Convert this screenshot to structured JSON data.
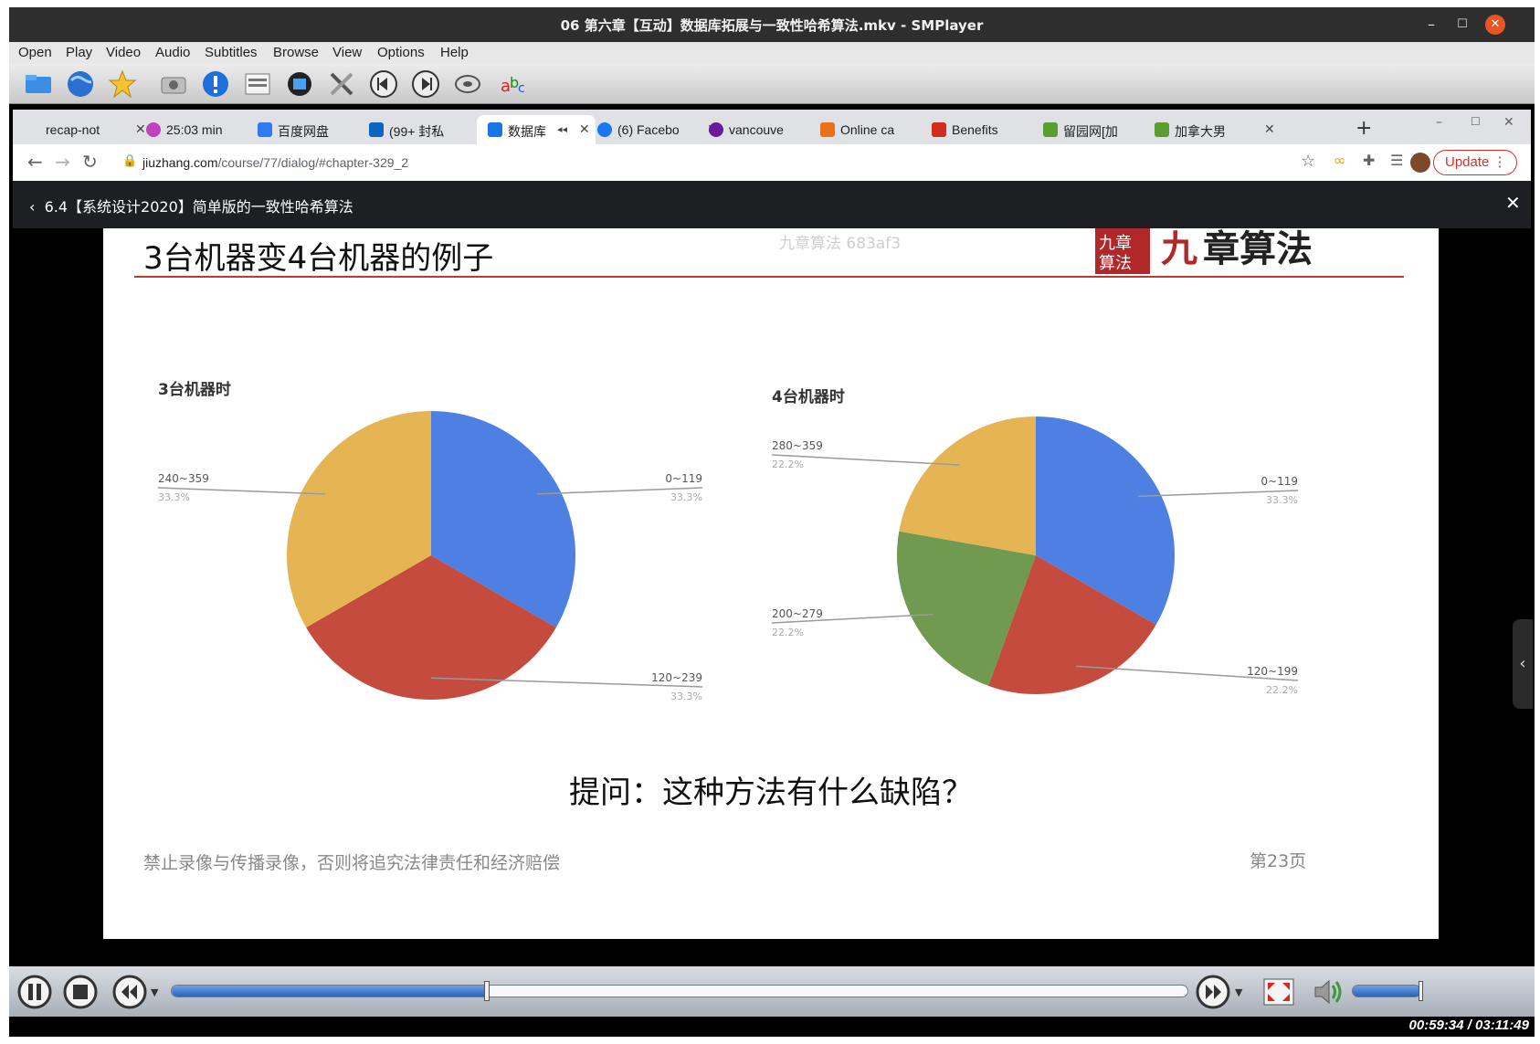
{
  "window": {
    "title": "06 第六章【互动】数据库拓展与一致性哈希算法.mkv - SMPlayer"
  },
  "menu": [
    "Open",
    "Play",
    "Video",
    "Audio",
    "Subtitles",
    "Browse",
    "View",
    "Options",
    "Help"
  ],
  "toolbar_icons": [
    "open-folder-icon",
    "globe-icon",
    "favorites-star-icon",
    "screenshot-camera-icon",
    "info-icon",
    "playlist-icon",
    "video-equalizer-icon",
    "preferences-tools-icon",
    "previous-icon",
    "next-icon",
    "audio-tracks-icon",
    "subtitle-abc-icon"
  ],
  "browser": {
    "tabs": [
      {
        "label": "recap-not"
      },
      {
        "label": "25:03 min"
      },
      {
        "label": "百度网盘"
      },
      {
        "label": "(99+ 封私"
      },
      {
        "label": "数据库"
      },
      {
        "label": "(6) Facebo"
      },
      {
        "label": "vancouve"
      },
      {
        "label": "Online ca"
      },
      {
        "label": "Benefits"
      },
      {
        "label": "留园网[加"
      },
      {
        "label": "加拿大男"
      }
    ],
    "url_host": "jiuzhang.com",
    "url_path": "/course/77/dialog/#chapter-329_2",
    "update_label": "Update"
  },
  "course": {
    "title": "6.4【系统设计2020】简单版的一致性哈希算法"
  },
  "slide": {
    "title": "3台机器变4台机器的例子",
    "watermark": "九章算法 683af3",
    "logo_text": "九章算法",
    "question": "提问：这种方法有什么缺陷？",
    "footer": "禁止录像与传播录像，否则将追究法律责任和经济赔偿",
    "page": "第23页"
  },
  "chart_data": [
    {
      "type": "pie",
      "title": "3台机器时",
      "categories": [
        "0~119",
        "120~239",
        "240~359"
      ],
      "values": [
        33.3,
        33.3,
        33.3
      ],
      "labels": [
        "33.3%",
        "33.3%",
        "33.3%"
      ],
      "colors": [
        "#4e7fe3",
        "#c54b3f",
        "#e6b553"
      ]
    },
    {
      "type": "pie",
      "title": "4台机器时",
      "categories": [
        "0~119",
        "120~199",
        "200~279",
        "280~359"
      ],
      "values": [
        33.3,
        22.2,
        22.2,
        22.2
      ],
      "labels": [
        "33.3%",
        "22.2%",
        "22.2%",
        "22.2%"
      ],
      "colors": [
        "#4e7fe3",
        "#c54b3f",
        "#6f9a50",
        "#e6b553"
      ]
    }
  ],
  "player": {
    "time": "00:59:34 / 03:11:49",
    "progress": 0.311
  }
}
